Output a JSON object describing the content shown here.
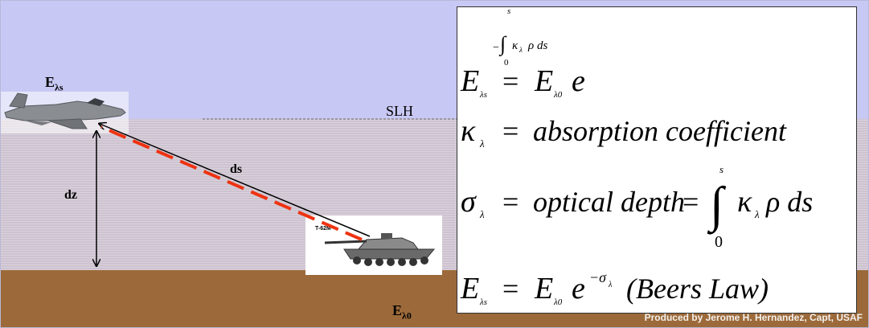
{
  "labels": {
    "e_lambda_s_base": "E",
    "e_lambda_s_sub": "λs",
    "e_lambda_0_base": "E",
    "e_lambda_0_sub": "λ0",
    "ds": "ds",
    "dz": "dz",
    "slh": "SLH",
    "tank_model": "T-62M"
  },
  "equations": {
    "eq1": {
      "lhs_base": "E",
      "lhs_sub": "λs",
      "equals": "=",
      "rhs_base": "E",
      "rhs_sub": "λ0",
      "exp_base": "e",
      "exp_sign": "−",
      "int_upper": "s",
      "int_lower": "0",
      "integrand_kappa": "κ",
      "integrand_sub": "λ",
      "integrand_rest": "ρ ds"
    },
    "eq2": {
      "lhs_base": "κ",
      "lhs_sub": "λ",
      "equals": "=",
      "rhs": "absorption coefficient"
    },
    "eq3": {
      "lhs_base": "σ",
      "lhs_sub": "λ",
      "equals": "=",
      "middle": "optical  depth",
      "equals2": "=",
      "int_upper": "s",
      "int_lower": "0",
      "integrand_kappa": "κ",
      "integrand_sub": "λ",
      "integrand_rest": "ρ ds"
    },
    "eq4": {
      "lhs_base": "E",
      "lhs_sub": "λs",
      "equals": "=",
      "rhs_base": "E",
      "rhs_sub": "λ0",
      "exp_base": "e",
      "exp_text": "−σ",
      "exp_sub": "λ",
      "law": "(Beers Law)"
    }
  },
  "credit": "Produced by Jerome H. Hernandez, Capt, USAF",
  "colors": {
    "sky": "#c8c8f4",
    "haze": "#cdc3d0",
    "ground": "#9c6a3a",
    "dashed_path": "#ee3311",
    "line": "#000000"
  },
  "icons": [
    "jet-aircraft-icon",
    "tank-icon"
  ]
}
